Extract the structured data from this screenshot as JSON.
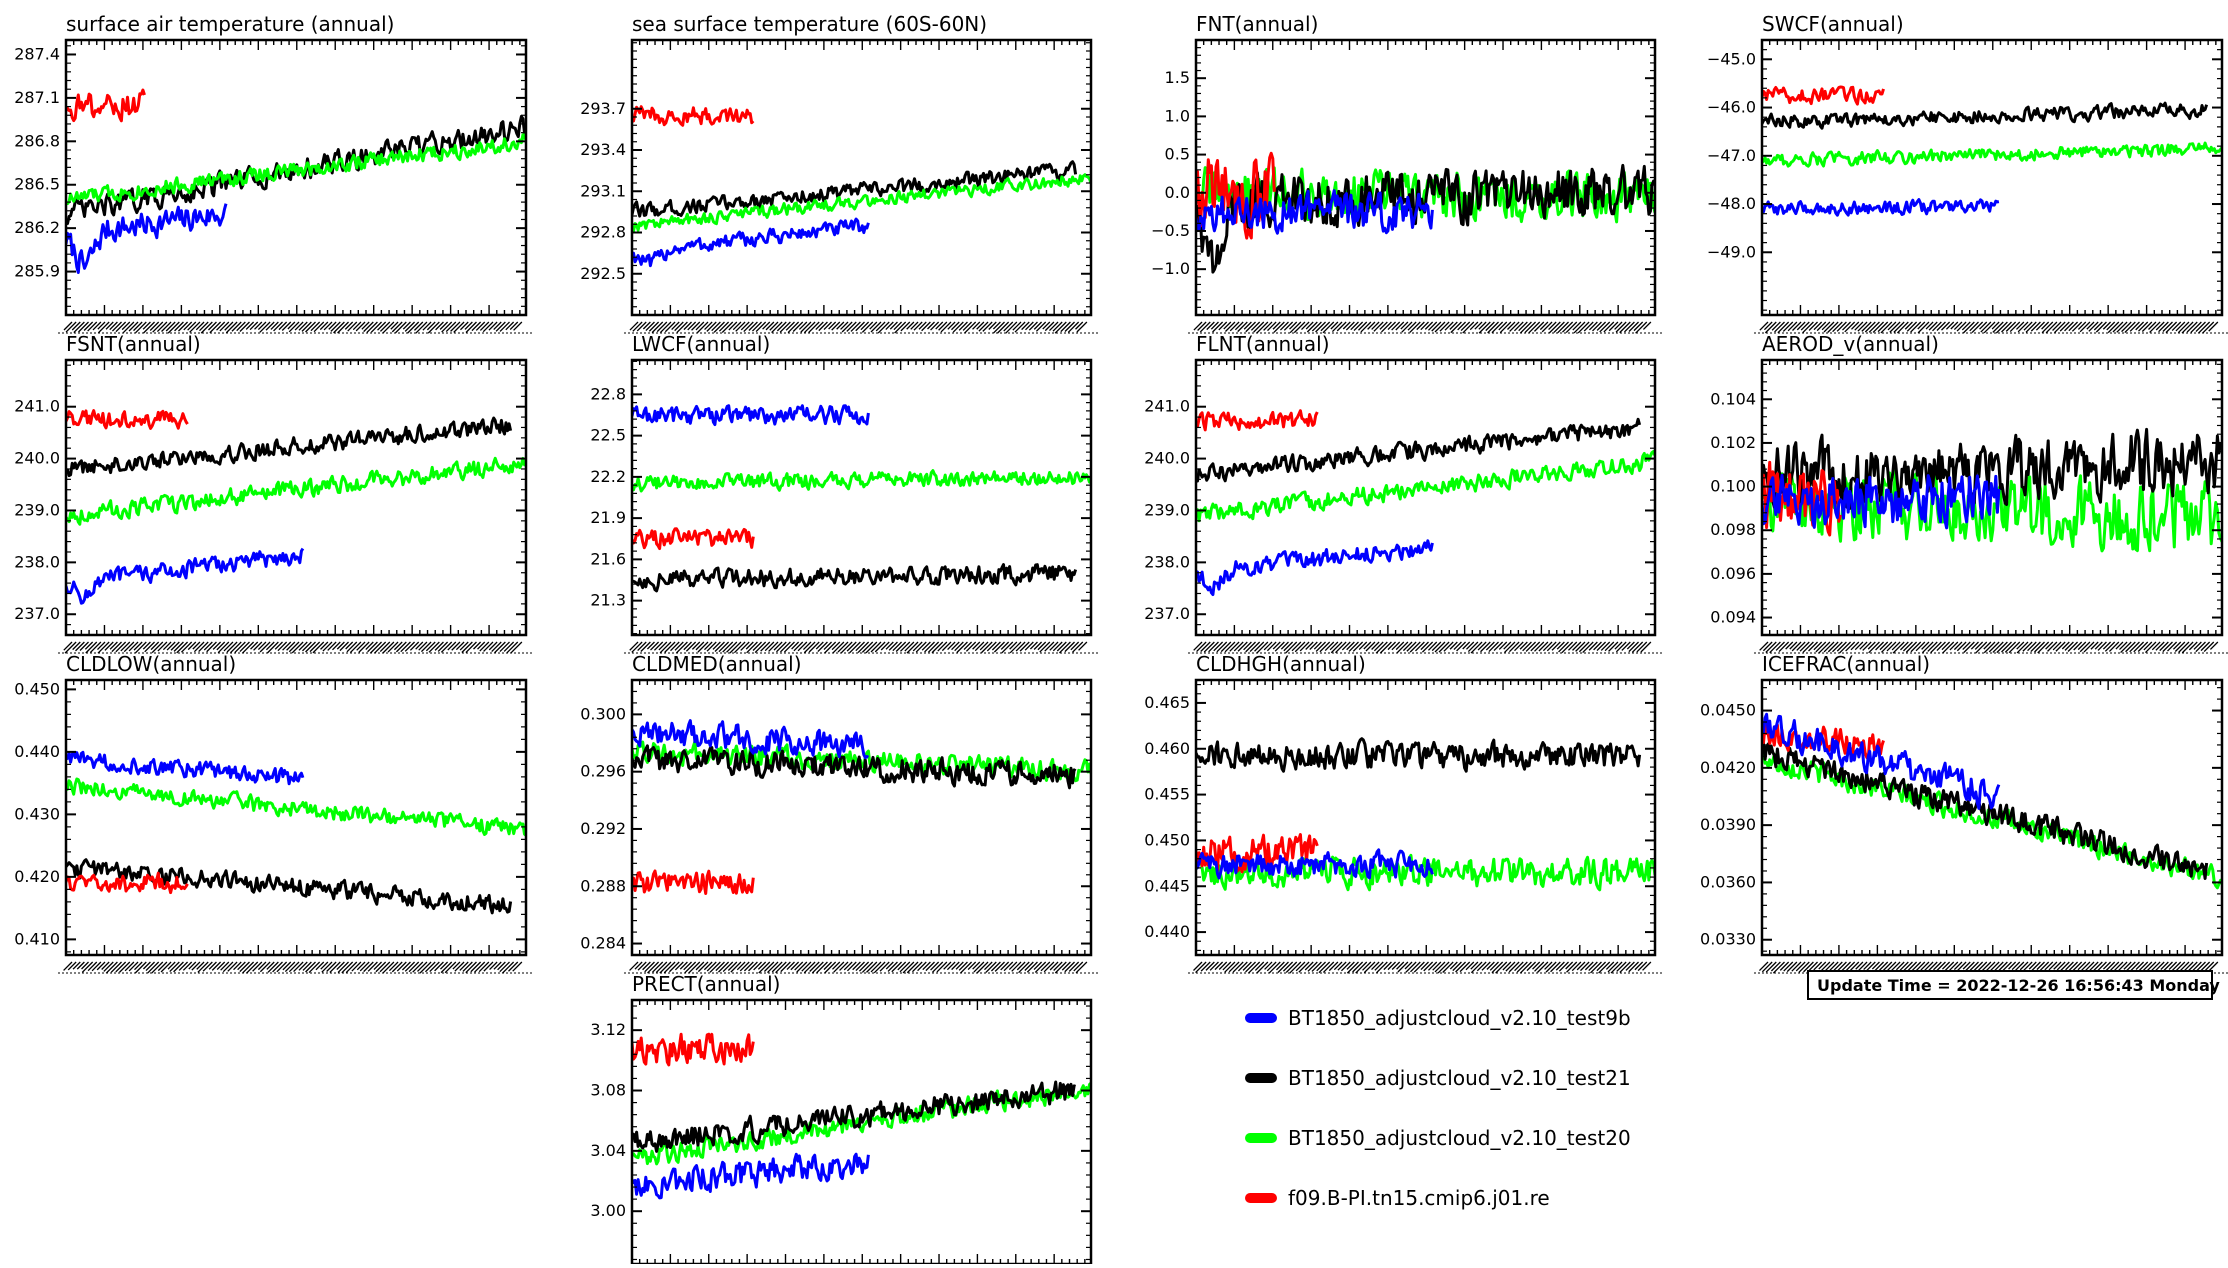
{
  "chart_data": [
    {
      "type": "line",
      "title": "surface air temperature (annual)",
      "yticks": [
        "287.4",
        "287.1",
        "286.8",
        "286.5",
        "286.2",
        "285.9"
      ],
      "ylim": [
        285.6,
        287.5
      ],
      "x_range": [
        1,
        300
      ],
      "series": [
        {
          "name": "BT1850_adjustcloud_v2.10_test9b",
          "color": "#0000ff",
          "x_end": 105,
          "start": 286.15,
          "end": 286.3,
          "noise": 0.08,
          "initial_drop": 0.25
        },
        {
          "name": "BT1850_adjustcloud_v2.10_test21",
          "color": "#000000",
          "x_end": 300,
          "start": 286.3,
          "end": 286.9,
          "noise": 0.07,
          "initial_drop": 0.0
        },
        {
          "name": "BT1850_adjustcloud_v2.10_test20",
          "color": "#00ff00",
          "x_end": 300,
          "start": 286.4,
          "end": 286.8,
          "noise": 0.05,
          "initial_drop": 0.0
        },
        {
          "name": "f09.B-PI.tn15.cmip6.j01.re",
          "color": "#ff0000",
          "x_end": 52,
          "start": 287.05,
          "end": 287.05,
          "noise": 0.08,
          "initial_drop": 0.0
        }
      ]
    },
    {
      "type": "line",
      "title": "sea surface temperature (60S-60N)",
      "yticks": [
        "293.7",
        "293.4",
        "293.1",
        "292.8",
        "292.5"
      ],
      "ylim": [
        292.2,
        294.2
      ],
      "x_range": [
        1,
        300
      ],
      "series": [
        {
          "name": "BT1850_adjustcloud_v2.10_test9b",
          "color": "#0000ff",
          "x_end": 155,
          "start": 292.65,
          "end": 292.85,
          "noise": 0.05,
          "initial_drop": 0.1
        },
        {
          "name": "BT1850_adjustcloud_v2.10_test21",
          "color": "#000000",
          "x_end": 290,
          "start": 292.95,
          "end": 293.25,
          "noise": 0.05,
          "initial_drop": 0.0
        },
        {
          "name": "BT1850_adjustcloud_v2.10_test20",
          "color": "#00ff00",
          "x_end": 300,
          "start": 292.85,
          "end": 293.2,
          "noise": 0.04,
          "initial_drop": 0.0
        },
        {
          "name": "f09.B-PI.tn15.cmip6.j01.re",
          "color": "#ff0000",
          "x_end": 80,
          "start": 293.65,
          "end": 293.65,
          "noise": 0.06,
          "initial_drop": 0.0
        }
      ]
    },
    {
      "type": "line",
      "title": "FNT(annual)",
      "yticks": [
        "1.5",
        "1.0",
        "0.5",
        "0.0",
        "−0.5",
        "−1.0"
      ],
      "ylim": [
        -1.6,
        2.0
      ],
      "x_range": [
        1,
        300
      ],
      "series": [
        {
          "name": "BT1850_adjustcloud_v2.10_test20",
          "color": "#00ff00",
          "x_end": 300,
          "start": 0.0,
          "end": -0.05,
          "noise": 0.28,
          "initial_drop": 0.0
        },
        {
          "name": "BT1850_adjustcloud_v2.10_test21",
          "color": "#000000",
          "x_end": 300,
          "start": -0.1,
          "end": 0.0,
          "noise": 0.3,
          "initial_drop": 1.0
        },
        {
          "name": "f09.B-PI.tn15.cmip6.j01.re",
          "color": "#ff0000",
          "x_end": 52,
          "start": 0.0,
          "end": 0.0,
          "noise": 0.45,
          "initial_drop": 0.0
        },
        {
          "name": "BT1850_adjustcloud_v2.10_test9b",
          "color": "#0000ff",
          "x_end": 155,
          "start": -0.25,
          "end": -0.25,
          "noise": 0.22,
          "initial_drop": 0.0
        }
      ]
    },
    {
      "type": "line",
      "title": "SWCF(annual)",
      "yticks": [
        "−45.0",
        "−46.0",
        "−47.0",
        "−48.0",
        "−49.0"
      ],
      "ylim": [
        -50.3,
        -44.6
      ],
      "x_range": [
        1,
        300
      ],
      "series": [
        {
          "name": "BT1850_adjustcloud_v2.10_test9b",
          "color": "#0000ff",
          "x_end": 155,
          "start": -48.1,
          "end": -48.05,
          "noise": 0.12,
          "initial_drop": 0.0
        },
        {
          "name": "BT1850_adjustcloud_v2.10_test20",
          "color": "#00ff00",
          "x_end": 300,
          "start": -47.1,
          "end": -46.85,
          "noise": 0.12,
          "initial_drop": 0.0
        },
        {
          "name": "BT1850_adjustcloud_v2.10_test21",
          "color": "#000000",
          "x_end": 290,
          "start": -46.3,
          "end": -46.05,
          "noise": 0.13,
          "initial_drop": 0.0
        },
        {
          "name": "f09.B-PI.tn15.cmip6.j01.re",
          "color": "#ff0000",
          "x_end": 80,
          "start": -45.75,
          "end": -45.75,
          "noise": 0.14,
          "initial_drop": 0.0
        }
      ]
    },
    {
      "type": "line",
      "title": "FSNT(annual)",
      "yticks": [
        "241.0",
        "240.0",
        "239.0",
        "238.0",
        "237.0"
      ],
      "ylim": [
        236.6,
        241.9
      ],
      "x_range": [
        1,
        300
      ],
      "series": [
        {
          "name": "BT1850_adjustcloud_v2.10_test9b",
          "color": "#0000ff",
          "x_end": 155,
          "start": 237.6,
          "end": 238.15,
          "noise": 0.15,
          "initial_drop": 0.3
        },
        {
          "name": "BT1850_adjustcloud_v2.10_test20",
          "color": "#00ff00",
          "x_end": 300,
          "start": 238.9,
          "end": 239.9,
          "noise": 0.15,
          "initial_drop": 0.0
        },
        {
          "name": "BT1850_adjustcloud_v2.10_test21",
          "color": "#000000",
          "x_end": 290,
          "start": 239.8,
          "end": 240.65,
          "noise": 0.15,
          "initial_drop": 0.0
        },
        {
          "name": "f09.B-PI.tn15.cmip6.j01.re",
          "color": "#ff0000",
          "x_end": 80,
          "start": 240.75,
          "end": 240.75,
          "noise": 0.15,
          "initial_drop": 0.0
        }
      ]
    },
    {
      "type": "line",
      "title": "LWCF(annual)",
      "yticks": [
        "22.8",
        "22.5",
        "22.2",
        "21.9",
        "21.6",
        "21.3"
      ],
      "ylim": [
        21.05,
        23.05
      ],
      "x_range": [
        1,
        300
      ],
      "series": [
        {
          "name": "BT1850_adjustcloud_v2.10_test9b",
          "color": "#0000ff",
          "x_end": 155,
          "start": 22.65,
          "end": 22.65,
          "noise": 0.06,
          "initial_drop": 0.0
        },
        {
          "name": "BT1850_adjustcloud_v2.10_test20",
          "color": "#00ff00",
          "x_end": 300,
          "start": 22.15,
          "end": 22.2,
          "noise": 0.05,
          "initial_drop": 0.0
        },
        {
          "name": "f09.B-PI.tn15.cmip6.j01.re",
          "color": "#ff0000",
          "x_end": 80,
          "start": 21.75,
          "end": 21.75,
          "noise": 0.06,
          "initial_drop": 0.0
        },
        {
          "name": "BT1850_adjustcloud_v2.10_test21",
          "color": "#000000",
          "x_end": 290,
          "start": 21.45,
          "end": 21.5,
          "noise": 0.06,
          "initial_drop": 0.0
        }
      ]
    },
    {
      "type": "line",
      "title": "FLNT(annual)",
      "yticks": [
        "241.0",
        "240.0",
        "239.0",
        "238.0",
        "237.0"
      ],
      "ylim": [
        236.6,
        241.9
      ],
      "x_range": [
        1,
        300
      ],
      "series": [
        {
          "name": "BT1850_adjustcloud_v2.10_test9b",
          "color": "#0000ff",
          "x_end": 155,
          "start": 237.8,
          "end": 238.3,
          "noise": 0.15,
          "initial_drop": 0.3
        },
        {
          "name": "BT1850_adjustcloud_v2.10_test20",
          "color": "#00ff00",
          "x_end": 300,
          "start": 238.9,
          "end": 239.95,
          "noise": 0.15,
          "initial_drop": 0.0
        },
        {
          "name": "BT1850_adjustcloud_v2.10_test21",
          "color": "#000000",
          "x_end": 290,
          "start": 239.7,
          "end": 240.6,
          "noise": 0.15,
          "initial_drop": 0.0
        },
        {
          "name": "f09.B-PI.tn15.cmip6.j01.re",
          "color": "#ff0000",
          "x_end": 80,
          "start": 240.7,
          "end": 240.75,
          "noise": 0.15,
          "initial_drop": 0.0
        }
      ]
    },
    {
      "type": "line",
      "title": "AEROD_v(annual)",
      "yticks": [
        "0.104",
        "0.102",
        "0.100",
        "0.098",
        "0.096",
        "0.094"
      ],
      "ylim": [
        0.0932,
        0.1058
      ],
      "x_range": [
        1,
        300
      ],
      "series": [
        {
          "name": "BT1850_adjustcloud_v2.10_test20",
          "color": "#00ff00",
          "x_end": 300,
          "start": 0.0995,
          "end": 0.0985,
          "noise": 0.0014,
          "initial_drop": 0.0
        },
        {
          "name": "BT1850_adjustcloud_v2.10_test21",
          "color": "#000000",
          "x_end": 300,
          "start": 0.1005,
          "end": 0.1012,
          "noise": 0.0013,
          "initial_drop": 0.0
        },
        {
          "name": "f09.B-PI.tn15.cmip6.j01.re",
          "color": "#ff0000",
          "x_end": 52,
          "start": 0.0995,
          "end": 0.0995,
          "noise": 0.0014,
          "initial_drop": 0.0
        },
        {
          "name": "BT1850_adjustcloud_v2.10_test9b",
          "color": "#0000ff",
          "x_end": 155,
          "start": 0.0993,
          "end": 0.0995,
          "noise": 0.0011,
          "initial_drop": 0.0
        }
      ]
    },
    {
      "type": "line",
      "title": "CLDLOW(annual)",
      "yticks": [
        "0.450",
        "0.440",
        "0.430",
        "0.420",
        "0.410"
      ],
      "ylim": [
        0.4075,
        0.4515
      ],
      "x_range": [
        1,
        300
      ],
      "series": [
        {
          "name": "BT1850_adjustcloud_v2.10_test20",
          "color": "#00ff00",
          "x_end": 300,
          "start": 0.4345,
          "end": 0.4275,
          "noise": 0.0012,
          "initial_drop": 0.0
        },
        {
          "name": "BT1850_adjustcloud_v2.10_test9b",
          "color": "#0000ff",
          "x_end": 155,
          "start": 0.439,
          "end": 0.4355,
          "noise": 0.0012,
          "initial_drop": 0.0
        },
        {
          "name": "BT1850_adjustcloud_v2.10_test21",
          "color": "#000000",
          "x_end": 290,
          "start": 0.4215,
          "end": 0.4155,
          "noise": 0.0013,
          "initial_drop": 0.0
        },
        {
          "name": "f09.B-PI.tn15.cmip6.j01.re",
          "color": "#ff0000",
          "x_end": 80,
          "start": 0.419,
          "end": 0.419,
          "noise": 0.0014,
          "initial_drop": 0.0
        }
      ]
    },
    {
      "type": "line",
      "title": "CLDMED(annual)",
      "yticks": [
        "0.300",
        "0.296",
        "0.292",
        "0.288",
        "0.284"
      ],
      "ylim": [
        0.2832,
        0.3024
      ],
      "x_range": [
        1,
        300
      ],
      "series": [
        {
          "name": "BT1850_adjustcloud_v2.10_test20",
          "color": "#00ff00",
          "x_end": 300,
          "start": 0.2975,
          "end": 0.296,
          "noise": 0.0007,
          "initial_drop": 0.0
        },
        {
          "name": "BT1850_adjustcloud_v2.10_test21",
          "color": "#000000",
          "x_end": 290,
          "start": 0.2968,
          "end": 0.2958,
          "noise": 0.0008,
          "initial_drop": 0.0
        },
        {
          "name": "BT1850_adjustcloud_v2.10_test9b",
          "color": "#0000ff",
          "x_end": 155,
          "start": 0.2988,
          "end": 0.2978,
          "noise": 0.0008,
          "initial_drop": 0.0
        },
        {
          "name": "f09.B-PI.tn15.cmip6.j01.re",
          "color": "#ff0000",
          "x_end": 80,
          "start": 0.2883,
          "end": 0.2883,
          "noise": 0.0008,
          "initial_drop": 0.0
        }
      ]
    },
    {
      "type": "line",
      "title": "CLDHGH(annual)",
      "yticks": [
        "0.465",
        "0.460",
        "0.455",
        "0.450",
        "0.445",
        "0.440"
      ],
      "ylim": [
        0.4375,
        0.4675
      ],
      "x_range": [
        1,
        300
      ],
      "series": [
        {
          "name": "BT1850_adjustcloud_v2.10_test20",
          "color": "#00ff00",
          "x_end": 300,
          "start": 0.4465,
          "end": 0.4465,
          "noise": 0.0014,
          "initial_drop": 0.0
        },
        {
          "name": "f09.B-PI.tn15.cmip6.j01.re",
          "color": "#ff0000",
          "x_end": 80,
          "start": 0.4485,
          "end": 0.4485,
          "noise": 0.0017,
          "initial_drop": 0.0
        },
        {
          "name": "BT1850_adjustcloud_v2.10_test9b",
          "color": "#0000ff",
          "x_end": 155,
          "start": 0.4475,
          "end": 0.4472,
          "noise": 0.0012,
          "initial_drop": 0.0
        },
        {
          "name": "BT1850_adjustcloud_v2.10_test21",
          "color": "#000000",
          "x_end": 290,
          "start": 0.4592,
          "end": 0.4592,
          "noise": 0.0013,
          "initial_drop": 0.0
        }
      ]
    },
    {
      "type": "line",
      "title": "ICEFRAC(annual)",
      "yticks": [
        "0.0450",
        "0.0420",
        "0.0390",
        "0.0360",
        "0.0330"
      ],
      "ylim": [
        0.0322,
        0.0466
      ],
      "x_range": [
        1,
        300
      ],
      "series": [
        {
          "name": "BT1850_adjustcloud_v2.10_test20",
          "color": "#00ff00",
          "x_end": 300,
          "start": 0.0425,
          "end": 0.0362,
          "noise": 0.0005,
          "initial_drop": 0.0
        },
        {
          "name": "BT1850_adjustcloud_v2.10_test21",
          "color": "#000000",
          "x_end": 290,
          "start": 0.0428,
          "end": 0.0366,
          "noise": 0.0006,
          "initial_drop": 0.0
        },
        {
          "name": "f09.B-PI.tn15.cmip6.j01.re",
          "color": "#ff0000",
          "x_end": 80,
          "start": 0.0438,
          "end": 0.0432,
          "noise": 0.0006,
          "initial_drop": 0.0
        },
        {
          "name": "BT1850_adjustcloud_v2.10_test9b",
          "color": "#0000ff",
          "x_end": 155,
          "start": 0.0442,
          "end": 0.0405,
          "noise": 0.0007,
          "initial_drop": 0.0
        }
      ]
    },
    {
      "type": "line",
      "title": "PRECT(annual)",
      "yticks": [
        "3.12",
        "3.08",
        "3.04",
        "3.00"
      ],
      "ylim": [
        2.965,
        3.14
      ],
      "x_range": [
        1,
        300
      ],
      "series": [
        {
          "name": "BT1850_adjustcloud_v2.10_test9b",
          "color": "#0000ff",
          "x_end": 155,
          "start": 3.018,
          "end": 3.032,
          "noise": 0.008,
          "initial_drop": 0.0
        },
        {
          "name": "BT1850_adjustcloud_v2.10_test20",
          "color": "#00ff00",
          "x_end": 300,
          "start": 3.035,
          "end": 3.082,
          "noise": 0.006,
          "initial_drop": 0.0
        },
        {
          "name": "BT1850_adjustcloud_v2.10_test21",
          "color": "#000000",
          "x_end": 290,
          "start": 3.045,
          "end": 3.08,
          "noise": 0.007,
          "initial_drop": 0.0
        },
        {
          "name": "f09.B-PI.tn15.cmip6.j01.re",
          "color": "#ff0000",
          "x_end": 80,
          "start": 3.108,
          "end": 3.108,
          "noise": 0.009,
          "initial_drop": 0.0
        }
      ]
    }
  ],
  "legend": [
    {
      "label": "BT1850_adjustcloud_v2.10_test9b",
      "color": "#0000ff"
    },
    {
      "label": "BT1850_adjustcloud_v2.10_test21",
      "color": "#000000"
    },
    {
      "label": "BT1850_adjustcloud_v2.10_test20",
      "color": "#00ff00"
    },
    {
      "label": "f09.B-PI.tn15.cmip6.j01.re",
      "color": "#ff0000"
    }
  ],
  "update_time": "Update Time = 2022-12-26 16:56:43 Monday"
}
